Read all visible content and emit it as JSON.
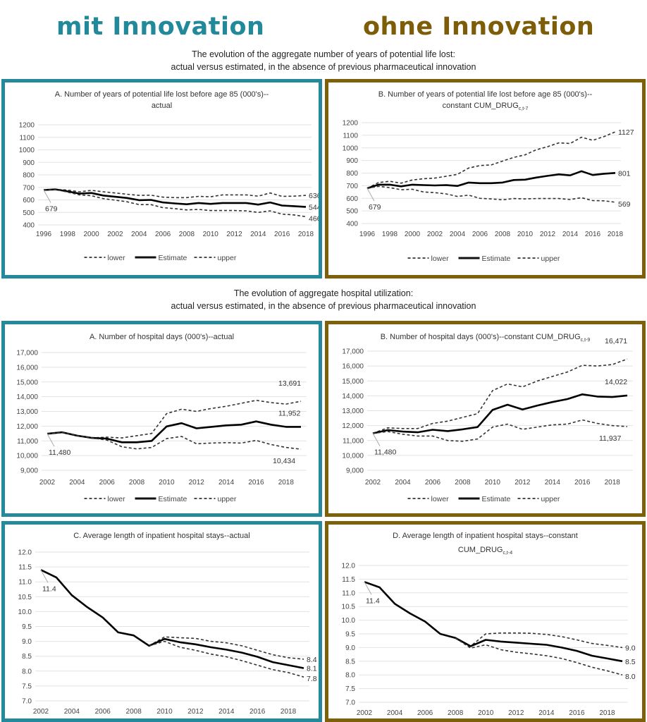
{
  "headers": {
    "mit": "mit Innovation",
    "ohne": "ohne Innovation"
  },
  "colors": {
    "mit": "#24899a",
    "ohne": "#7e5f0a"
  },
  "sections": [
    {
      "line1": "The evolution of the aggregate number of years of potential life lost:",
      "line2": "actual versus estimated, in the absence of previous pharmaceutical innovation"
    },
    {
      "line1": "The evolution of aggregate hospital utilization:",
      "line2": "actual versus estimated, in the absence of previous pharmaceutical innovation"
    }
  ],
  "legend": {
    "lower": "lower",
    "estimate": "Estimate",
    "upper": "upper"
  },
  "chart_data": [
    {
      "id": "ypll-actual",
      "type": "line",
      "title": "A. Number of years of potential life lost before age 85 (000's)--",
      "title2": "actual",
      "title2_sub": "",
      "x": [
        1996,
        1997,
        1998,
        1999,
        2000,
        2001,
        2002,
        2003,
        2004,
        2005,
        2006,
        2007,
        2008,
        2009,
        2010,
        2011,
        2012,
        2013,
        2014,
        2015,
        2016,
        2017,
        2018
      ],
      "xticks": [
        1996,
        1998,
        2000,
        2002,
        2004,
        2006,
        2008,
        2010,
        2012,
        2014,
        2016,
        2018
      ],
      "ylim": [
        400,
        1200
      ],
      "yticks": [
        400,
        500,
        600,
        700,
        800,
        900,
        1000,
        1100,
        1200
      ],
      "ytick_format": "plain",
      "series": [
        {
          "name": "upper",
          "values": [
            679,
            684,
            678,
            665,
            676,
            665,
            655,
            645,
            636,
            638,
            622,
            618,
            618,
            628,
            625,
            640,
            640,
            640,
            630,
            655,
            628,
            630,
            636
          ]
        },
        {
          "name": "Estimate",
          "values": [
            679,
            684,
            668,
            650,
            655,
            635,
            625,
            615,
            598,
            600,
            580,
            572,
            565,
            575,
            568,
            575,
            575,
            575,
            562,
            580,
            555,
            550,
            544
          ]
        },
        {
          "name": "lower",
          "values": [
            679,
            684,
            662,
            640,
            634,
            610,
            598,
            585,
            562,
            562,
            538,
            530,
            520,
            524,
            515,
            515,
            515,
            512,
            500,
            512,
            486,
            480,
            466
          ]
        }
      ],
      "labels": {
        "start": "679",
        "upper": "636",
        "estimate": "544",
        "lower": "466"
      },
      "show_legend": true
    },
    {
      "id": "ypll-constant",
      "type": "line",
      "title": "B. Number of years of potential life lost before age 85 (000's)--",
      "title2": "constant CUM_DRUG",
      "title2_sub": "c,t-7",
      "x": [
        1996,
        1997,
        1998,
        1999,
        2000,
        2001,
        2002,
        2003,
        2004,
        2005,
        2006,
        2007,
        2008,
        2009,
        2010,
        2011,
        2012,
        2013,
        2014,
        2015,
        2016,
        2017,
        2018
      ],
      "xticks": [
        1996,
        1998,
        2000,
        2002,
        2004,
        2006,
        2008,
        2010,
        2012,
        2014,
        2016,
        2018
      ],
      "ylim": [
        400,
        1200
      ],
      "yticks": [
        400,
        500,
        600,
        700,
        800,
        900,
        1000,
        1100,
        1200
      ],
      "ytick_format": "plain",
      "series": [
        {
          "name": "upper",
          "values": [
            679,
            725,
            735,
            720,
            745,
            755,
            760,
            775,
            790,
            840,
            860,
            865,
            895,
            925,
            945,
            985,
            1010,
            1040,
            1035,
            1085,
            1060,
            1090,
            1127
          ]
        },
        {
          "name": "Estimate",
          "values": [
            679,
            708,
            708,
            695,
            708,
            705,
            702,
            705,
            698,
            725,
            720,
            720,
            725,
            745,
            748,
            765,
            778,
            790,
            782,
            815,
            785,
            795,
            801
          ]
        },
        {
          "name": "lower",
          "values": [
            679,
            695,
            685,
            668,
            672,
            650,
            645,
            635,
            615,
            625,
            600,
            595,
            588,
            598,
            595,
            598,
            598,
            598,
            590,
            605,
            582,
            580,
            569
          ]
        }
      ],
      "labels": {
        "start": "679",
        "upper": "1127",
        "estimate": "801",
        "lower": "569"
      },
      "show_legend": true
    },
    {
      "id": "hospdays-actual",
      "type": "line",
      "title": "A. Number of hospital days (000's)--actual",
      "title2": "",
      "title2_sub": "",
      "x": [
        2002,
        2003,
        2004,
        2005,
        2006,
        2007,
        2008,
        2009,
        2010,
        2011,
        2012,
        2013,
        2014,
        2015,
        2016,
        2017,
        2018,
        2019
      ],
      "xticks": [
        2002,
        2004,
        2006,
        2008,
        2010,
        2012,
        2014,
        2016,
        2018
      ],
      "ylim": [
        9000,
        17000
      ],
      "yticks": [
        9000,
        10000,
        11000,
        12000,
        13000,
        14000,
        15000,
        16000,
        17000
      ],
      "ytick_format": "comma",
      "series": [
        {
          "name": "upper",
          "values": [
            11480,
            11580,
            11350,
            11200,
            11250,
            11200,
            11350,
            11500,
            12850,
            13150,
            13000,
            13200,
            13350,
            13550,
            13750,
            13600,
            13500,
            13691
          ]
        },
        {
          "name": "Estimate",
          "values": [
            11480,
            11580,
            11350,
            11200,
            11150,
            10900,
            10900,
            11000,
            11980,
            12200,
            11850,
            11950,
            12050,
            12100,
            12320,
            12100,
            11950,
            11952
          ]
        },
        {
          "name": "lower",
          "values": [
            11480,
            11580,
            11350,
            11200,
            11050,
            10600,
            10450,
            10550,
            11150,
            11300,
            10800,
            10850,
            10880,
            10850,
            11030,
            10750,
            10550,
            10434
          ]
        }
      ],
      "labels": {
        "start": "11,480",
        "upper": "13,691",
        "estimate": "11,952",
        "lower": "10,434"
      },
      "show_legend": true
    },
    {
      "id": "hospdays-constant",
      "type": "line",
      "title": "B. Number of hospital days (000's)--constant CUM_DRUG",
      "title_sub": "c,t-9",
      "title2": "",
      "title2_sub": "",
      "x": [
        2002,
        2003,
        2004,
        2005,
        2006,
        2007,
        2008,
        2009,
        2010,
        2011,
        2012,
        2013,
        2014,
        2015,
        2016,
        2017,
        2018,
        2019
      ],
      "xticks": [
        2002,
        2004,
        2006,
        2008,
        2010,
        2012,
        2014,
        2016,
        2018
      ],
      "ylim": [
        9000,
        17000
      ],
      "yticks": [
        9000,
        10000,
        11000,
        12000,
        13000,
        14000,
        15000,
        16000,
        17000
      ],
      "ytick_format": "comma",
      "series": [
        {
          "name": "upper",
          "values": [
            11480,
            11850,
            11800,
            11800,
            12150,
            12300,
            12550,
            12800,
            14350,
            14800,
            14600,
            15000,
            15300,
            15600,
            16050,
            16000,
            16100,
            16471
          ]
        },
        {
          "name": "Estimate",
          "values": [
            11480,
            11700,
            11600,
            11550,
            11720,
            11630,
            11750,
            11900,
            13050,
            13400,
            13080,
            13350,
            13580,
            13780,
            14100,
            13950,
            13920,
            14022
          ]
        },
        {
          "name": "lower",
          "values": [
            11480,
            11600,
            11420,
            11300,
            11300,
            11000,
            10950,
            11100,
            11900,
            12100,
            11750,
            11900,
            12050,
            12100,
            12380,
            12150,
            12000,
            11937
          ]
        }
      ],
      "labels": {
        "start": "11,480",
        "upper": "16,471",
        "estimate": "14,022",
        "lower": "11,937"
      },
      "show_legend": true
    },
    {
      "id": "los-actual",
      "type": "line",
      "title": "C. Average length of inpatient hospital stays--actual",
      "title2": "",
      "title2_sub": "",
      "x": [
        2002,
        2003,
        2004,
        2005,
        2006,
        2007,
        2008,
        2009,
        2010,
        2011,
        2012,
        2013,
        2014,
        2015,
        2016,
        2017,
        2018,
        2019
      ],
      "xticks": [
        2002,
        2004,
        2006,
        2008,
        2010,
        2012,
        2014,
        2016,
        2018
      ],
      "ylim": [
        7.0,
        12.0
      ],
      "yticks": [
        7.0,
        7.5,
        8.0,
        8.5,
        9.0,
        9.5,
        10.0,
        10.5,
        11.0,
        11.5,
        12.0
      ],
      "ytick_format": "one-decimal",
      "series": [
        {
          "name": "upper",
          "values": [
            null,
            null,
            null,
            null,
            null,
            null,
            null,
            8.85,
            9.15,
            9.12,
            9.1,
            9.0,
            8.95,
            8.85,
            8.7,
            8.55,
            8.45,
            8.4
          ]
        },
        {
          "name": "Estimate",
          "values": [
            11.4,
            11.15,
            10.55,
            10.15,
            9.8,
            9.3,
            9.2,
            8.85,
            9.08,
            8.97,
            8.9,
            8.8,
            8.72,
            8.62,
            8.48,
            8.3,
            8.2,
            8.1
          ]
        },
        {
          "name": "lower",
          "values": [
            null,
            null,
            null,
            null,
            null,
            null,
            null,
            8.85,
            9.0,
            8.8,
            8.7,
            8.57,
            8.48,
            8.35,
            8.2,
            8.05,
            7.95,
            7.8
          ]
        }
      ],
      "labels": {
        "start": "11.4",
        "upper": "8.4",
        "estimate": "8.1",
        "lower": "7.8"
      },
      "show_legend": false
    },
    {
      "id": "los-constant",
      "type": "line",
      "title": "D. Average length of inpatient hospital stays--constant",
      "title2": "CUM_DRUG",
      "title2_sub": "c,t-4",
      "x": [
        2002,
        2003,
        2004,
        2005,
        2006,
        2007,
        2008,
        2009,
        2010,
        2011,
        2012,
        2013,
        2014,
        2015,
        2016,
        2017,
        2018,
        2019
      ],
      "xticks": [
        2002,
        2004,
        2006,
        2008,
        2010,
        2012,
        2014,
        2016,
        2018
      ],
      "ylim": [
        7.0,
        12.0
      ],
      "yticks": [
        7.0,
        7.5,
        8.0,
        8.5,
        9.0,
        9.5,
        10.0,
        10.5,
        11.0,
        11.5,
        12.0
      ],
      "ytick_format": "one-decimal",
      "series": [
        {
          "name": "upper",
          "values": [
            null,
            null,
            null,
            null,
            null,
            null,
            9.35,
            9.05,
            9.5,
            9.53,
            9.53,
            9.52,
            9.48,
            9.4,
            9.28,
            9.15,
            9.08,
            9.0
          ]
        },
        {
          "name": "Estimate",
          "values": [
            11.4,
            11.2,
            10.6,
            10.25,
            9.95,
            9.5,
            9.35,
            9.05,
            9.28,
            9.22,
            9.18,
            9.14,
            9.1,
            9.0,
            8.88,
            8.7,
            8.6,
            8.5
          ]
        },
        {
          "name": "lower",
          "values": [
            null,
            null,
            null,
            null,
            null,
            null,
            9.35,
            8.98,
            9.1,
            8.92,
            8.83,
            8.77,
            8.7,
            8.6,
            8.45,
            8.28,
            8.15,
            8.0
          ]
        }
      ],
      "labels": {
        "start": "11.4",
        "upper": "9.0",
        "estimate": "8.5",
        "lower": "8.0"
      },
      "show_legend": false
    }
  ]
}
